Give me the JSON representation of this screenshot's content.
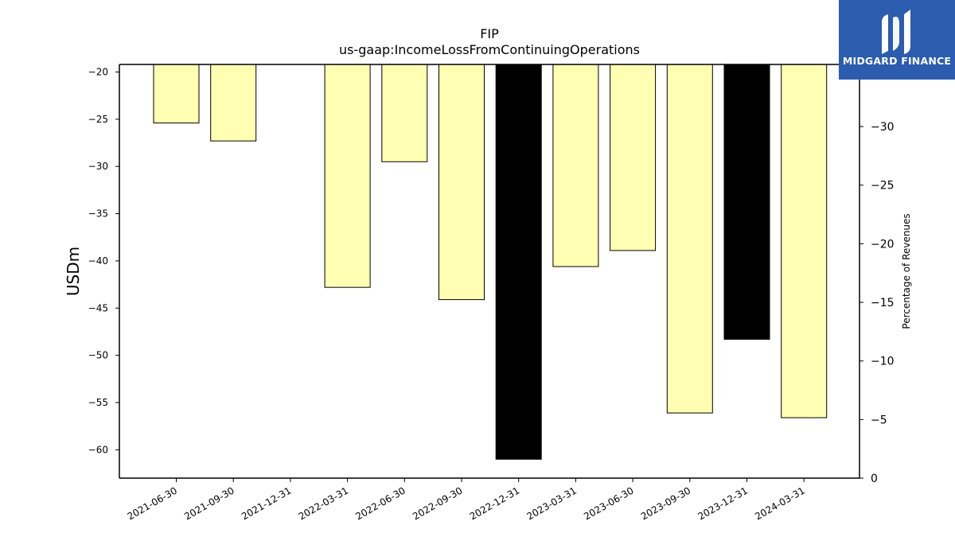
{
  "chart_data": {
    "type": "bar",
    "title": "FIP",
    "subtitle": "us-gaap:IncomeLossFromContinuingOperations",
    "ylabel": "USDm",
    "y2label": "Percentage of Revenues",
    "categories": [
      "2021-06-30",
      "2021-09-30",
      "2021-12-31",
      "2022-03-31",
      "2022-06-30",
      "2022-09-30",
      "2022-12-31",
      "2023-03-31",
      "2023-06-30",
      "2023-09-30",
      "2023-12-31",
      "2024-03-31"
    ],
    "values": [
      -25.4,
      -27.3,
      null,
      -42.8,
      -29.5,
      -44.1,
      -61.0,
      -40.6,
      -38.9,
      -56.1,
      -48.3,
      -56.6
    ],
    "highlight": [
      false,
      false,
      false,
      false,
      false,
      false,
      true,
      false,
      false,
      false,
      true,
      false
    ],
    "bar_color": "#ffffb3",
    "highlight_color": "#000000",
    "ylim": [
      -63,
      -19.2
    ],
    "yticks": [
      -20,
      -25,
      -30,
      -35,
      -40,
      -45,
      -50,
      -55,
      -60
    ],
    "ytick_labels": [
      "−20",
      "−25",
      "−30",
      "−35",
      "−40",
      "−45",
      "−50",
      "−55",
      "−60"
    ],
    "y2lim": [
      0,
      -35.3
    ],
    "y2ticks": [
      0,
      -5,
      -10,
      -15,
      -20,
      -25,
      -30
    ],
    "y2tick_labels": [
      "0",
      "−5",
      "−10",
      "−15",
      "−20",
      "−25",
      "−30"
    ],
    "grid": false
  },
  "logo": {
    "text": "MIDGARD FINANCE",
    "color": "#2b5cad"
  }
}
